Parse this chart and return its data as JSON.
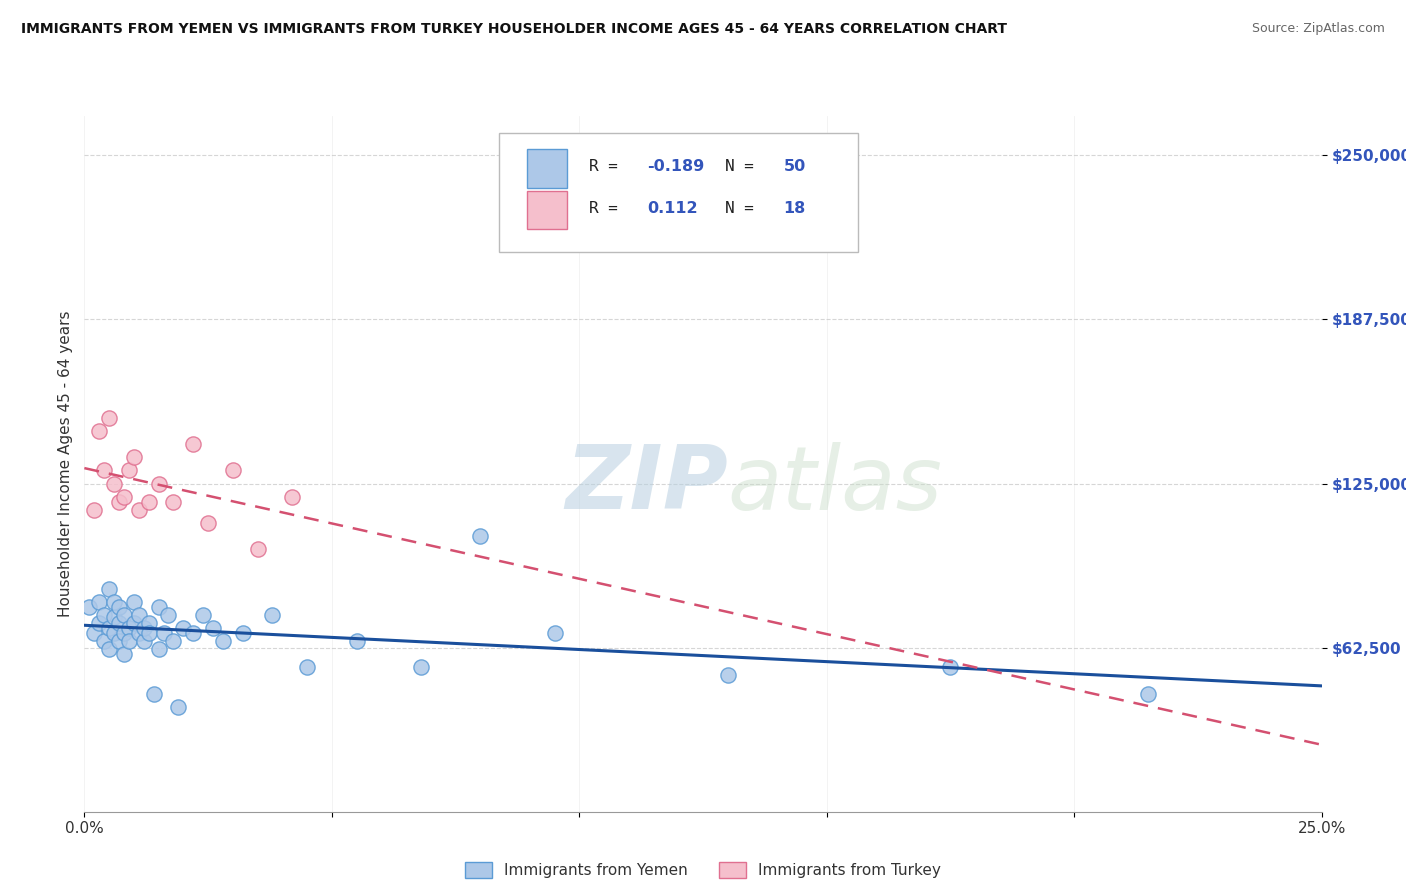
{
  "title": "IMMIGRANTS FROM YEMEN VS IMMIGRANTS FROM TURKEY HOUSEHOLDER INCOME AGES 45 - 64 YEARS CORRELATION CHART",
  "source": "Source: ZipAtlas.com",
  "ylabel": "Householder Income Ages 45 - 64 years",
  "xlim": [
    0.0,
    0.25
  ],
  "ylim": [
    0,
    265000
  ],
  "yticks": [
    62500,
    125000,
    187500,
    250000
  ],
  "ytick_labels": [
    "$62,500",
    "$125,000",
    "$187,500",
    "$250,000"
  ],
  "xtick_show": [
    "0.0%",
    "25.0%"
  ],
  "xtick_pos_show": [
    0.0,
    0.25
  ],
  "yemen_color": "#adc8e8",
  "turkey_color": "#f5bfcc",
  "yemen_edge": "#5b9bd5",
  "turkey_edge": "#e07090",
  "trend_yemen_color": "#1a4f9c",
  "trend_turkey_color": "#d45070",
  "legend_color": "#3355bb",
  "watermark_zip": "ZIP",
  "watermark_atlas": "atlas",
  "yemen_x": [
    0.001,
    0.002,
    0.003,
    0.003,
    0.004,
    0.004,
    0.005,
    0.005,
    0.005,
    0.006,
    0.006,
    0.006,
    0.007,
    0.007,
    0.007,
    0.008,
    0.008,
    0.008,
    0.009,
    0.009,
    0.01,
    0.01,
    0.011,
    0.011,
    0.012,
    0.012,
    0.013,
    0.013,
    0.014,
    0.015,
    0.015,
    0.016,
    0.017,
    0.018,
    0.019,
    0.02,
    0.022,
    0.024,
    0.026,
    0.028,
    0.032,
    0.038,
    0.045,
    0.055,
    0.068,
    0.08,
    0.095,
    0.13,
    0.175,
    0.215
  ],
  "yemen_y": [
    78000,
    68000,
    72000,
    80000,
    65000,
    75000,
    70000,
    85000,
    62000,
    68000,
    74000,
    80000,
    65000,
    72000,
    78000,
    68000,
    75000,
    60000,
    70000,
    65000,
    72000,
    80000,
    68000,
    75000,
    65000,
    70000,
    72000,
    68000,
    45000,
    62000,
    78000,
    68000,
    75000,
    65000,
    40000,
    70000,
    68000,
    75000,
    70000,
    65000,
    68000,
    75000,
    55000,
    65000,
    55000,
    105000,
    68000,
    52000,
    55000,
    45000
  ],
  "turkey_x": [
    0.002,
    0.003,
    0.004,
    0.005,
    0.006,
    0.007,
    0.008,
    0.009,
    0.01,
    0.011,
    0.013,
    0.015,
    0.018,
    0.022,
    0.025,
    0.03,
    0.035,
    0.042
  ],
  "turkey_y": [
    115000,
    145000,
    130000,
    150000,
    125000,
    118000,
    120000,
    130000,
    135000,
    115000,
    118000,
    125000,
    118000,
    140000,
    110000,
    130000,
    100000,
    120000
  ],
  "background_color": "#ffffff"
}
